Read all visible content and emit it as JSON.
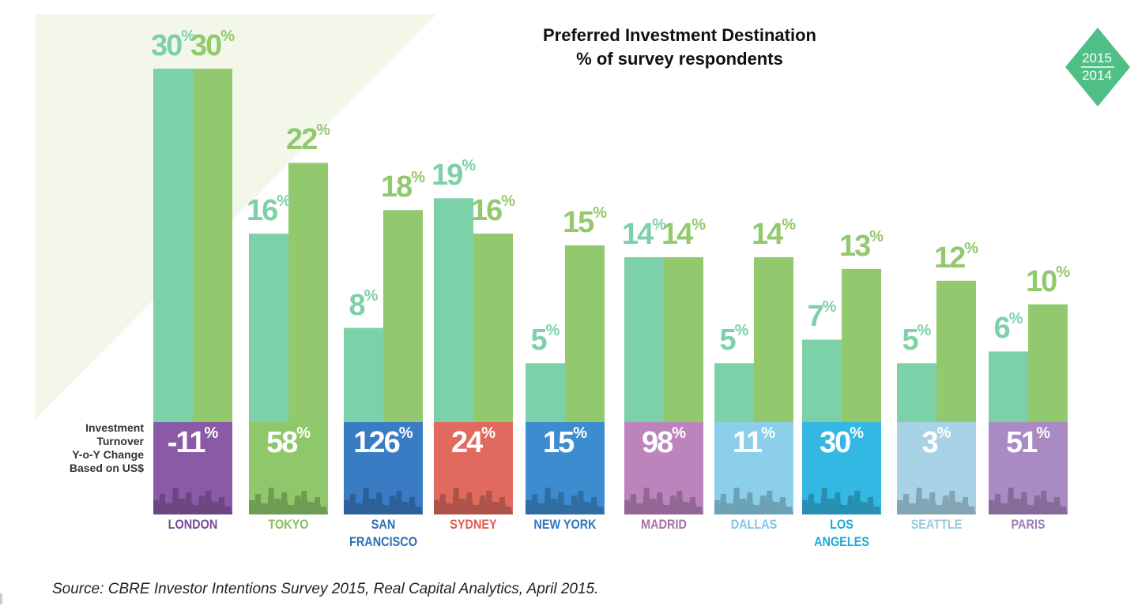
{
  "chart_data": {
    "type": "bar",
    "title": "Preferred Investment Destination",
    "subtitle": "% of survey respondents",
    "legend": {
      "series_labels": [
        "2015",
        "2014"
      ],
      "placement": "top-right"
    },
    "categories": [
      "LONDON",
      "TOKYO",
      "SAN FRANCISCO",
      "SYDNEY",
      "NEW YORK",
      "MADRID",
      "DALLAS",
      "LOS ANGELES",
      "SEATTLE",
      "PARIS"
    ],
    "series": [
      {
        "name": "2015",
        "values": [
          30,
          16,
          8,
          19,
          5,
          14,
          5,
          7,
          5,
          6
        ],
        "color": "#7dd1a8"
      },
      {
        "name": "2014",
        "values": [
          30,
          22,
          18,
          16,
          15,
          14,
          14,
          13,
          12,
          10
        ],
        "color": "#92c96e"
      }
    ],
    "turnover": {
      "label": [
        "Investment",
        "Turnover",
        "Y-o-Y Change",
        "Based on US$"
      ],
      "values": [
        -11,
        58,
        126,
        24,
        15,
        98,
        11,
        30,
        3,
        51
      ],
      "colors": [
        "#8a5aa6",
        "#8fc86a",
        "#3a7cc4",
        "#e06a5e",
        "#3d8cd0",
        "#bb84bd",
        "#8ccfea",
        "#32b8e2",
        "#a8d3e6",
        "#a98ac3"
      ],
      "label_colors": [
        "#7a4a96",
        "#86c05a",
        "#2f6db5",
        "#e05a4e",
        "#2f77c0",
        "#a86eac",
        "#7cc6e6",
        "#22a8d8",
        "#98c8de",
        "#9a7ab6"
      ]
    },
    "city_display": [
      [
        "LONDON"
      ],
      [
        "TOKYO"
      ],
      [
        "SAN",
        "FRANCISCO"
      ],
      [
        "SYDNEY"
      ],
      [
        "NEW YORK"
      ],
      [
        "MADRID"
      ],
      [
        "DALLAS"
      ],
      [
        "LOS",
        "ANGELES"
      ],
      [
        "SEATTLE"
      ],
      [
        "PARIS"
      ]
    ],
    "ylim": [
      0,
      30
    ],
    "grid": false
  },
  "source": "Source: CBRE Investor Intentions Survey 2015, Real Capital Analytics, April 2015."
}
